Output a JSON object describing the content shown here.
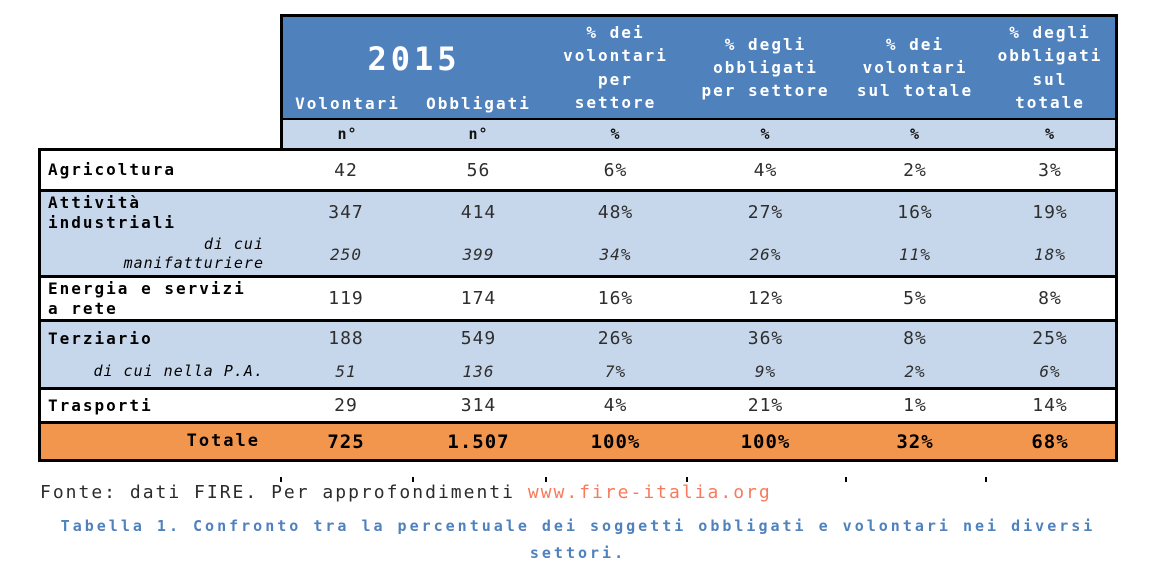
{
  "table": {
    "year": "2015",
    "column_headers": [
      "Volontari",
      "Obbligati",
      "% dei volontari per settore",
      "% degli obbligati per settore",
      "% dei volontari sul totale",
      "% degli obbligati sul totale"
    ],
    "unit_row": [
      "n°",
      "n°",
      "%",
      "%",
      "%",
      "%"
    ],
    "rows": [
      {
        "label": "Agricoltura",
        "label_lines": [
          "Agricoltura"
        ],
        "style": "white",
        "values": [
          "42",
          "56",
          "6%",
          "4%",
          "2%",
          "3%"
        ]
      },
      {
        "label": "Attività industriali",
        "label_lines": [
          "Attività",
          "industriali"
        ],
        "style": "blue",
        "values": [
          "347",
          "414",
          "48%",
          "27%",
          "16%",
          "19%"
        ]
      },
      {
        "label": "di cui manifatturiere",
        "label_lines": [
          "di cui",
          "manifatturiere"
        ],
        "style": "blue-italic",
        "values": [
          "250",
          "399",
          "34%",
          "26%",
          "11%",
          "18%"
        ]
      },
      {
        "label": "Energia e servizi a rete",
        "label_lines": [
          "Energia e servizi",
          "a rete"
        ],
        "style": "white",
        "values": [
          "119",
          "174",
          "16%",
          "12%",
          "5%",
          "8%"
        ]
      },
      {
        "label": "Terziario",
        "label_lines": [
          "Terziario"
        ],
        "style": "blue",
        "values": [
          "188",
          "549",
          "26%",
          "36%",
          "8%",
          "25%"
        ]
      },
      {
        "label": "di cui nella P.A.",
        "label_lines": [
          "di cui nella P.A."
        ],
        "style": "blue-italic",
        "values": [
          "51",
          "136",
          "7%",
          "9%",
          "2%",
          "6%"
        ]
      },
      {
        "label": "Trasporti",
        "label_lines": [
          "Trasporti"
        ],
        "style": "white",
        "values": [
          "29",
          "314",
          "4%",
          "21%",
          "1%",
          "14%"
        ]
      },
      {
        "label": "Totale",
        "label_lines": [
          "Totale"
        ],
        "style": "total",
        "values": [
          "725",
          "1.507",
          "100%",
          "100%",
          "32%",
          "68%"
        ]
      }
    ]
  },
  "footer": {
    "source_text": "Fonte: dati FIRE. Per approfondimenti ",
    "source_link": "www.fire-italia.org",
    "caption": "Tabella 1. Confronto tra la percentuale dei soggetti obbligati e volontari nei diversi settori."
  },
  "colors": {
    "header_blue": "#4f81bd",
    "row_blue": "#c7d7eb",
    "total_orange": "#f2964e",
    "caption_blue": "#4f81bd",
    "link_color": "#f87a5c",
    "border_black": "#000000"
  }
}
